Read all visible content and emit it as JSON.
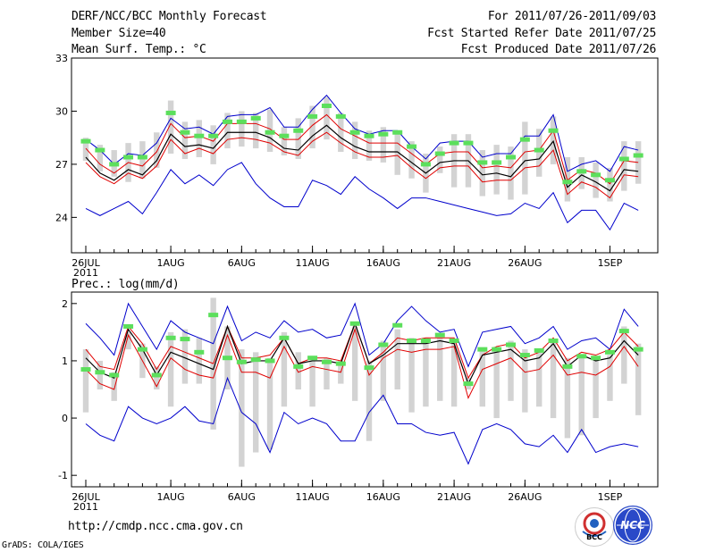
{
  "header": {
    "title": "DERF/NCC/BCC Monthly Forecast",
    "member_size": "Member Size=40",
    "variable": "Mean Surf. Temp.: °C",
    "period": "For 2011/07/26-2011/09/03",
    "fcst_started": "Fcst Started Refer Date 2011/07/25",
    "fcst_produced": "Fcst Produced Date 2011/07/26"
  },
  "footer": {
    "url": "http://cmdp.ncc.cma.gov.cn",
    "credit": "GrADS: COLA/IGES",
    "logo_bcc_label": "BCC",
    "logo_ncc_label": "NCC"
  },
  "colors": {
    "ensemble_bar": "#d3d3d3",
    "max_min": "#0000cc",
    "spread": "#e00000",
    "mean": "#000000",
    "green_marker": "#5cdf5c"
  },
  "chart_data": [
    {
      "type": "line",
      "title": "Mean Surf. Temp.: °C",
      "x_start_day": 0,
      "x_count": 40,
      "xticks": [
        {
          "day": 0,
          "label": "26JUL",
          "sub": "2011"
        },
        {
          "day": 6,
          "label": "1AUG"
        },
        {
          "day": 11,
          "label": "6AUG"
        },
        {
          "day": 16,
          "label": "11AUG"
        },
        {
          "day": 21,
          "label": "16AUG"
        },
        {
          "day": 26,
          "label": "21AUG"
        },
        {
          "day": 31,
          "label": "26AUG"
        },
        {
          "day": 37,
          "label": "1SEP"
        }
      ],
      "ylim": [
        22,
        33
      ],
      "yticks": [
        24,
        27,
        30,
        33
      ],
      "series": [
        {
          "name": "max",
          "values": [
            28.4,
            27.8,
            27.0,
            27.6,
            27.5,
            28.2,
            29.6,
            29.0,
            29.1,
            28.7,
            29.7,
            29.8,
            29.8,
            30.2,
            29.1,
            29.1,
            30.1,
            30.9,
            29.9,
            29.0,
            28.7,
            28.9,
            28.9,
            28.0,
            27.3,
            28.2,
            28.3,
            28.3,
            27.4,
            27.6,
            27.6,
            28.6,
            28.6,
            29.8,
            26.6,
            27.0,
            27.2,
            26.6,
            28.0,
            27.8
          ]
        },
        {
          "name": "min",
          "values": [
            24.5,
            24.1,
            24.5,
            24.9,
            24.2,
            25.4,
            26.7,
            25.9,
            26.4,
            25.8,
            26.7,
            27.1,
            25.9,
            25.1,
            24.6,
            24.6,
            26.1,
            25.8,
            25.3,
            26.3,
            25.6,
            25.1,
            24.5,
            25.1,
            25.1,
            24.9,
            24.7,
            24.5,
            24.3,
            24.1,
            24.2,
            24.8,
            24.5,
            25.4,
            23.7,
            24.4,
            24.4,
            23.3,
            24.8,
            24.4
          ]
        },
        {
          "name": "upper",
          "values": [
            27.9,
            27.0,
            26.5,
            27.1,
            26.9,
            27.7,
            29.3,
            28.5,
            28.6,
            28.3,
            29.3,
            29.3,
            29.3,
            29.0,
            28.4,
            28.4,
            29.2,
            29.8,
            29.0,
            28.6,
            28.2,
            28.2,
            28.2,
            27.6,
            27.0,
            27.6,
            27.7,
            27.7,
            26.8,
            26.9,
            26.8,
            27.7,
            27.8,
            28.9,
            26.1,
            26.7,
            26.5,
            25.9,
            27.2,
            27.1
          ]
        },
        {
          "name": "mean",
          "values": [
            27.4,
            26.5,
            26.1,
            26.7,
            26.4,
            27.2,
            28.7,
            28.0,
            28.1,
            27.9,
            28.8,
            28.8,
            28.8,
            28.5,
            27.9,
            27.8,
            28.6,
            29.2,
            28.5,
            28.0,
            27.7,
            27.7,
            27.7,
            27.1,
            26.5,
            27.1,
            27.2,
            27.2,
            26.4,
            26.5,
            26.3,
            27.2,
            27.3,
            28.3,
            25.7,
            26.4,
            26.0,
            25.5,
            26.7,
            26.6
          ]
        },
        {
          "name": "lower",
          "values": [
            27.1,
            26.3,
            25.9,
            26.5,
            26.2,
            26.9,
            28.4,
            27.6,
            27.9,
            27.6,
            28.4,
            28.5,
            28.4,
            28.2,
            27.7,
            27.5,
            28.3,
            28.8,
            28.2,
            27.7,
            27.4,
            27.4,
            27.5,
            26.8,
            26.2,
            26.8,
            26.9,
            26.9,
            26.0,
            26.1,
            26.1,
            26.8,
            26.9,
            27.8,
            25.3,
            26.0,
            25.7,
            25.1,
            26.4,
            26.3
          ]
        },
        {
          "name": "green",
          "values": [
            28.3,
            27.8,
            27.0,
            27.4,
            27.4,
            null,
            29.9,
            28.8,
            28.6,
            28.6,
            29.4,
            29.4,
            29.6,
            28.8,
            28.6,
            28.9,
            29.7,
            30.3,
            29.7,
            28.8,
            28.6,
            28.7,
            28.8,
            28.0,
            27.0,
            27.6,
            28.2,
            28.2,
            27.1,
            27.1,
            27.4,
            28.4,
            27.8,
            28.9,
            26.0,
            26.6,
            26.4,
            26.1,
            27.3,
            27.5
          ]
        },
        {
          "name": "bar_top",
          "values": [
            28.5,
            28.1,
            27.8,
            28.2,
            28.3,
            28.8,
            30.6,
            29.4,
            29.5,
            29.2,
            29.9,
            30.0,
            29.9,
            30.1,
            29.1,
            29.6,
            30.3,
            30.8,
            29.9,
            29.4,
            28.9,
            29.1,
            28.8,
            28.3,
            27.6,
            28.0,
            28.7,
            28.7,
            27.8,
            28.1,
            28.0,
            29.4,
            29.0,
            29.7,
            27.4,
            27.4,
            27.1,
            26.8,
            28.3,
            28.3
          ]
        },
        {
          "name": "bar_bottom",
          "values": [
            27.2,
            26.6,
            26.3,
            26.0,
            26.2,
            26.8,
            27.6,
            27.3,
            27.4,
            27.0,
            27.9,
            28.0,
            27.9,
            27.7,
            27.5,
            27.3,
            27.9,
            28.4,
            27.7,
            27.3,
            27.2,
            27.1,
            26.4,
            26.2,
            25.4,
            26.5,
            25.7,
            25.7,
            25.2,
            25.3,
            25.0,
            25.3,
            26.3,
            27.0,
            24.9,
            25.6,
            25.1,
            24.9,
            25.5,
            25.9
          ]
        }
      ]
    },
    {
      "type": "line",
      "title": "Prec.: log(mm/d)",
      "x_start_day": 0,
      "x_count": 40,
      "xticks": [
        {
          "day": 0,
          "label": "26JUL",
          "sub": "2011"
        },
        {
          "day": 6,
          "label": "1AUG"
        },
        {
          "day": 11,
          "label": "6AUG"
        },
        {
          "day": 16,
          "label": "11AUG"
        },
        {
          "day": 21,
          "label": "16AUG"
        },
        {
          "day": 26,
          "label": "21AUG"
        },
        {
          "day": 31,
          "label": "26AUG"
        },
        {
          "day": 37,
          "label": "1SEP"
        }
      ],
      "ylim": [
        -1.2,
        2.2
      ],
      "yticks": [
        -1,
        0,
        1,
        2
      ],
      "series": [
        {
          "name": "max",
          "values": [
            1.65,
            1.4,
            1.1,
            2.0,
            1.6,
            1.2,
            1.7,
            1.5,
            1.4,
            1.3,
            1.95,
            1.35,
            1.5,
            1.4,
            1.7,
            1.5,
            1.55,
            1.4,
            1.45,
            2.0,
            1.1,
            1.3,
            1.7,
            1.95,
            1.7,
            1.5,
            1.55,
            0.9,
            1.5,
            1.55,
            1.6,
            1.3,
            1.4,
            1.6,
            1.2,
            1.35,
            1.4,
            1.2,
            1.9,
            1.6
          ]
        },
        {
          "name": "min",
          "values": [
            -0.1,
            -0.3,
            -0.4,
            0.2,
            0.0,
            -0.1,
            0.0,
            0.2,
            -0.05,
            -0.1,
            0.7,
            0.1,
            -0.1,
            -0.6,
            0.1,
            -0.1,
            0.0,
            -0.1,
            -0.4,
            -0.4,
            0.1,
            0.4,
            -0.1,
            -0.1,
            -0.25,
            -0.3,
            -0.25,
            -0.8,
            -0.2,
            -0.1,
            -0.2,
            -0.45,
            -0.5,
            -0.3,
            -0.6,
            -0.2,
            -0.6,
            -0.5,
            -0.45,
            -0.5
          ]
        },
        {
          "name": "upper",
          "values": [
            1.2,
            0.9,
            0.85,
            1.6,
            1.3,
            0.85,
            1.25,
            1.15,
            1.05,
            0.95,
            1.6,
            1.05,
            1.05,
            1.1,
            1.4,
            0.95,
            1.05,
            1.05,
            1.0,
            1.65,
            0.95,
            1.15,
            1.4,
            1.35,
            1.4,
            1.4,
            1.4,
            0.7,
            1.1,
            1.25,
            1.3,
            1.05,
            1.15,
            1.4,
            1.0,
            1.15,
            1.1,
            1.2,
            1.5,
            1.25
          ]
        },
        {
          "name": "mean",
          "values": [
            1.05,
            0.8,
            0.7,
            1.55,
            1.2,
            0.75,
            1.15,
            1.05,
            0.95,
            0.85,
            1.6,
            0.95,
            1.0,
            1.0,
            1.4,
            0.95,
            1.0,
            1.0,
            0.95,
            1.65,
            0.95,
            1.1,
            1.3,
            1.3,
            1.3,
            1.35,
            1.3,
            0.6,
            1.1,
            1.15,
            1.2,
            1.0,
            1.05,
            1.3,
            0.9,
            1.1,
            1.0,
            1.05,
            1.35,
            1.1
          ]
        },
        {
          "name": "lower",
          "values": [
            0.85,
            0.6,
            0.5,
            1.45,
            1.0,
            0.55,
            1.05,
            0.85,
            0.75,
            0.7,
            1.45,
            0.8,
            0.8,
            0.7,
            1.25,
            0.8,
            0.9,
            0.85,
            0.8,
            1.55,
            0.75,
            1.05,
            1.2,
            1.15,
            1.2,
            1.2,
            1.25,
            0.35,
            0.85,
            0.95,
            1.05,
            0.8,
            0.85,
            1.1,
            0.75,
            0.8,
            0.75,
            0.9,
            1.25,
            0.9
          ]
        },
        {
          "name": "green",
          "values": [
            0.85,
            0.8,
            0.75,
            1.6,
            1.2,
            0.75,
            1.4,
            1.38,
            1.15,
            1.8,
            1.05,
            0.98,
            1.02,
            1.0,
            1.4,
            0.9,
            1.05,
            0.98,
            0.95,
            1.65,
            0.88,
            1.28,
            1.62,
            1.35,
            1.35,
            1.45,
            1.35,
            0.6,
            1.2,
            1.2,
            1.28,
            1.1,
            1.18,
            1.35,
            0.9,
            1.08,
            1.05,
            1.15,
            1.52,
            1.2
          ]
        },
        {
          "name": "bar_top",
          "values": [
            1.2,
            1.0,
            0.8,
            1.5,
            1.3,
            0.9,
            1.5,
            1.55,
            1.4,
            2.1,
            1.6,
            1.2,
            1.15,
            1.05,
            1.5,
            1.15,
            1.0,
            1.05,
            1.0,
            1.6,
            1.0,
            1.35,
            1.55,
            1.4,
            1.4,
            1.4,
            1.35,
            0.7,
            1.2,
            1.25,
            1.35,
            1.2,
            1.2,
            1.35,
            1.05,
            1.05,
            1.05,
            1.1,
            1.6,
            1.3
          ]
        },
        {
          "name": "bar_bottom",
          "values": [
            0.1,
            0.5,
            0.3,
            1.2,
            0.7,
            0.5,
            0.2,
            0.6,
            0.6,
            -0.2,
            0.5,
            -0.85,
            -0.6,
            -0.55,
            0.2,
            0.5,
            0.2,
            0.5,
            0.6,
            0.3,
            -0.4,
            0.3,
            0.5,
            0.1,
            0.2,
            0.3,
            0.2,
            0.5,
            0.2,
            0.0,
            0.3,
            0.1,
            0.2,
            0.0,
            -0.35,
            -0.3,
            0.0,
            0.3,
            0.6,
            0.05
          ]
        }
      ]
    }
  ],
  "panel2_label": "Prec.: log(mm/d)"
}
